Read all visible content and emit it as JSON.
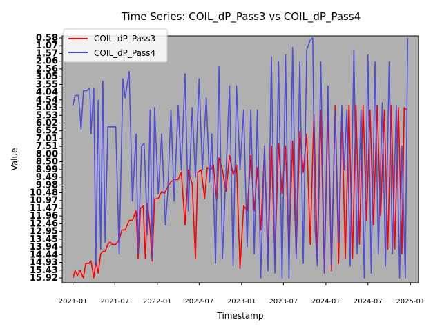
{
  "chart_data": {
    "type": "line",
    "title": "Time Series: COIL_dP_Pass3 vs COIL_dP_Pass4",
    "xlabel": "Timestamp",
    "ylabel": "Value",
    "x_ticks": [
      "2021-01",
      "2021-07",
      "2022-01",
      "2022-07",
      "2023-01",
      "2023-07",
      "2024-01",
      "2024-07",
      "2025-01"
    ],
    "xlim": [
      "2020-11-15",
      "2025-02-05"
    ],
    "y_ticks": [
      "15.92",
      "15.43",
      "14.93",
      "14.44",
      "13.94",
      "13.45",
      "12.95",
      "12.46",
      "11.96",
      "11.47",
      "10.97",
      "10.48",
      "9.98",
      "9.49",
      "8.99",
      "8.50",
      "8.00",
      "7.51",
      "7.01",
      "6.52",
      "6.02",
      "5.53",
      "5.03",
      "4.54",
      "4.04",
      "3.55",
      "3.05",
      "2.56",
      "2.06",
      "1.57",
      "1.07",
      "0.58"
    ],
    "ylim": [
      0,
      1
    ],
    "legend": {
      "placement": "upper-left"
    },
    "axes_background": "#b0b0b0",
    "grid": false,
    "series": [
      {
        "name": "COIL_dP_Pass3",
        "color": "#ff0000",
        "points": [
          [
            "2021-01-01",
            0.0
          ],
          [
            "2021-01-10",
            0.03
          ],
          [
            "2021-01-20",
            0.01
          ],
          [
            "2021-02-01",
            0.03
          ],
          [
            "2021-02-15",
            0.0
          ],
          [
            "2021-02-25",
            0.06
          ],
          [
            "2021-03-10",
            0.06
          ],
          [
            "2021-03-20",
            0.07
          ],
          [
            "2021-04-01",
            0.0
          ],
          [
            "2021-04-10",
            0.07
          ],
          [
            "2021-04-20",
            0.02
          ],
          [
            "2021-05-01",
            0.1
          ],
          [
            "2021-05-10",
            0.11
          ],
          [
            "2021-05-20",
            0.11
          ],
          [
            "2021-06-01",
            0.14
          ],
          [
            "2021-06-10",
            0.15
          ],
          [
            "2021-06-20",
            0.14
          ],
          [
            "2021-07-05",
            0.14
          ],
          [
            "2021-07-20",
            0.16
          ],
          [
            "2021-08-01",
            0.2
          ],
          [
            "2021-08-15",
            0.2
          ],
          [
            "2021-09-01",
            0.24
          ],
          [
            "2021-09-15",
            0.24
          ],
          [
            "2021-10-01",
            0.28
          ],
          [
            "2021-10-10",
            0.08
          ],
          [
            "2021-10-20",
            0.29
          ],
          [
            "2021-11-01",
            0.3
          ],
          [
            "2021-11-10",
            0.08
          ],
          [
            "2021-11-20",
            0.31
          ],
          [
            "2021-12-01",
            0.2
          ],
          [
            "2021-12-10",
            0.07
          ],
          [
            "2021-12-20",
            0.33
          ],
          [
            "2022-01-05",
            0.33
          ],
          [
            "2022-01-20",
            0.36
          ],
          [
            "2022-02-01",
            0.35
          ],
          [
            "2022-02-15",
            0.38
          ],
          [
            "2022-03-01",
            0.4
          ],
          [
            "2022-03-15",
            0.41
          ],
          [
            "2022-04-01",
            0.41
          ],
          [
            "2022-04-15",
            0.44
          ],
          [
            "2022-05-01",
            0.22
          ],
          [
            "2022-05-15",
            0.45
          ],
          [
            "2022-06-01",
            0.39
          ],
          [
            "2022-06-15",
            0.08
          ],
          [
            "2022-06-25",
            0.44
          ],
          [
            "2022-07-10",
            0.45
          ],
          [
            "2022-07-25",
            0.33
          ],
          [
            "2022-08-05",
            0.46
          ],
          [
            "2022-08-20",
            0.45
          ],
          [
            "2022-09-01",
            0.47
          ],
          [
            "2022-09-15",
            0.32
          ],
          [
            "2022-09-25",
            0.5
          ],
          [
            "2022-10-10",
            0.45
          ],
          [
            "2022-10-25",
            0.36
          ],
          [
            "2022-11-10",
            0.51
          ],
          [
            "2022-11-25",
            0.43
          ],
          [
            "2022-12-10",
            0.47
          ],
          [
            "2022-12-25",
            0.04
          ],
          [
            "2023-01-10",
            0.3
          ],
          [
            "2023-01-25",
            0.28
          ],
          [
            "2023-02-10",
            0.51
          ],
          [
            "2023-02-25",
            0.28
          ],
          [
            "2023-03-10",
            0.46
          ],
          [
            "2023-03-25",
            0.2
          ],
          [
            "2023-04-10",
            0.53
          ],
          [
            "2023-04-25",
            0.1
          ],
          [
            "2023-05-10",
            0.55
          ],
          [
            "2023-05-25",
            0.08
          ],
          [
            "2023-06-10",
            0.56
          ],
          [
            "2023-06-25",
            0.35
          ],
          [
            "2023-07-10",
            0.55
          ],
          [
            "2023-07-25",
            0.1
          ],
          [
            "2023-08-10",
            0.57
          ],
          [
            "2023-08-25",
            0.1
          ],
          [
            "2023-09-10",
            0.61
          ],
          [
            "2023-09-25",
            0.44
          ],
          [
            "2023-10-10",
            0.6
          ],
          [
            "2023-10-25",
            0.14
          ],
          [
            "2023-11-10",
            0.68
          ],
          [
            "2023-11-25",
            0.06
          ],
          [
            "2023-12-10",
            0.7
          ],
          [
            "2023-12-25",
            0.02
          ],
          [
            "2024-01-10",
            0.71
          ],
          [
            "2024-01-25",
            0.03
          ],
          [
            "2024-02-10",
            0.72
          ],
          [
            "2024-02-25",
            0.06
          ],
          [
            "2024-03-10",
            0.69
          ],
          [
            "2024-03-25",
            0.08
          ],
          [
            "2024-04-10",
            0.72
          ],
          [
            "2024-04-25",
            0.08
          ],
          [
            "2024-05-10",
            0.72
          ],
          [
            "2024-05-25",
            0.14
          ],
          [
            "2024-06-10",
            0.72
          ],
          [
            "2024-06-25",
            0.24
          ],
          [
            "2024-07-10",
            0.7
          ],
          [
            "2024-07-25",
            0.22
          ],
          [
            "2024-08-10",
            0.72
          ],
          [
            "2024-08-25",
            0.26
          ],
          [
            "2024-09-10",
            0.7
          ],
          [
            "2024-09-25",
            0.12
          ],
          [
            "2024-10-10",
            0.72
          ],
          [
            "2024-10-25",
            0.12
          ],
          [
            "2024-11-10",
            0.71
          ],
          [
            "2024-11-25",
            0.1
          ],
          [
            "2024-12-05",
            0.71
          ],
          [
            "2024-12-15",
            0.7
          ]
        ]
      },
      {
        "name": "COIL_dP_Pass4",
        "color": "#4444e0",
        "points": [
          [
            "2021-01-01",
            0.72
          ],
          [
            "2021-01-10",
            0.76
          ],
          [
            "2021-01-25",
            0.76
          ],
          [
            "2021-02-05",
            0.62
          ],
          [
            "2021-02-15",
            0.78
          ],
          [
            "2021-03-01",
            0.78
          ],
          [
            "2021-03-15",
            0.79
          ],
          [
            "2021-03-20",
            0.6
          ],
          [
            "2021-04-01",
            0.79
          ],
          [
            "2021-04-10",
            0.05
          ],
          [
            "2021-04-20",
            0.74
          ],
          [
            "2021-05-01",
            0.12
          ],
          [
            "2021-05-10",
            0.82
          ],
          [
            "2021-05-20",
            0.15
          ],
          [
            "2021-06-01",
            0.63
          ],
          [
            "2021-06-20",
            0.63
          ],
          [
            "2021-07-05",
            0.63
          ],
          [
            "2021-07-20",
            0.1
          ],
          [
            "2021-08-05",
            0.83
          ],
          [
            "2021-08-15",
            0.75
          ],
          [
            "2021-09-01",
            0.86
          ],
          [
            "2021-09-15",
            0.32
          ],
          [
            "2021-10-01",
            0.6
          ],
          [
            "2021-10-10",
            0.1
          ],
          [
            "2021-10-25",
            0.55
          ],
          [
            "2021-11-05",
            0.56
          ],
          [
            "2021-11-20",
            0.18
          ],
          [
            "2021-12-01",
            0.7
          ],
          [
            "2021-12-10",
            0.08
          ],
          [
            "2021-12-20",
            0.71
          ],
          [
            "2022-01-05",
            0.35
          ],
          [
            "2022-01-20",
            0.6
          ],
          [
            "2022-02-05",
            0.22
          ],
          [
            "2022-02-15",
            0.35
          ],
          [
            "2022-03-01",
            0.7
          ],
          [
            "2022-03-15",
            0.32
          ],
          [
            "2022-04-01",
            0.72
          ],
          [
            "2022-04-15",
            0.45
          ],
          [
            "2022-05-01",
            0.85
          ],
          [
            "2022-05-15",
            0.28
          ],
          [
            "2022-06-01",
            0.71
          ],
          [
            "2022-06-15",
            0.42
          ],
          [
            "2022-07-01",
            0.83
          ],
          [
            "2022-07-15",
            0.45
          ],
          [
            "2022-08-01",
            0.75
          ],
          [
            "2022-08-15",
            0.4
          ],
          [
            "2022-08-25",
            0.6
          ],
          [
            "2022-09-10",
            0.06
          ],
          [
            "2022-09-25",
            0.88
          ],
          [
            "2022-10-10",
            0.08
          ],
          [
            "2022-10-25",
            0.43
          ],
          [
            "2022-11-10",
            0.8
          ],
          [
            "2022-11-25",
            0.05
          ],
          [
            "2022-12-10",
            0.8
          ],
          [
            "2022-12-25",
            0.45
          ],
          [
            "2023-01-10",
            0.7
          ],
          [
            "2023-01-25",
            0.13
          ],
          [
            "2023-02-10",
            0.7
          ],
          [
            "2023-02-25",
            0.1
          ],
          [
            "2023-03-10",
            0.7
          ],
          [
            "2023-03-25",
            0.0
          ],
          [
            "2023-04-10",
            0.55
          ],
          [
            "2023-04-25",
            0.03
          ],
          [
            "2023-05-10",
            0.92
          ],
          [
            "2023-05-25",
            0.02
          ],
          [
            "2023-06-10",
            0.9
          ],
          [
            "2023-06-25",
            0.0
          ],
          [
            "2023-07-10",
            0.93
          ],
          [
            "2023-07-25",
            0.0
          ],
          [
            "2023-08-10",
            0.96
          ],
          [
            "2023-08-25",
            0.08
          ],
          [
            "2023-09-10",
            0.9
          ],
          [
            "2023-09-25",
            0.06
          ],
          [
            "2023-10-10",
            0.95
          ],
          [
            "2023-10-25",
            0.99
          ],
          [
            "2023-11-05",
            1.0
          ],
          [
            "2023-11-15",
            0.2
          ],
          [
            "2023-11-25",
            0.05
          ],
          [
            "2023-12-10",
            0.9
          ],
          [
            "2023-12-25",
            0.02
          ],
          [
            "2024-01-10",
            0.8
          ],
          [
            "2024-01-25",
            0.05
          ],
          [
            "2024-02-10",
            0.7
          ],
          [
            "2024-02-25",
            0.15
          ],
          [
            "2024-03-10",
            0.72
          ],
          [
            "2024-03-20",
            0.45
          ],
          [
            "2024-04-01",
            0.7
          ],
          [
            "2024-04-15",
            0.05
          ],
          [
            "2024-05-01",
            0.95
          ],
          [
            "2024-05-15",
            0.1
          ],
          [
            "2024-06-01",
            0.7
          ],
          [
            "2024-06-15",
            0.0
          ],
          [
            "2024-07-01",
            0.93
          ],
          [
            "2024-07-15",
            0.02
          ],
          [
            "2024-08-01",
            0.9
          ],
          [
            "2024-08-15",
            0.1
          ],
          [
            "2024-09-01",
            0.73
          ],
          [
            "2024-09-15",
            0.05
          ],
          [
            "2024-10-01",
            0.9
          ],
          [
            "2024-10-15",
            0.1
          ],
          [
            "2024-11-01",
            0.72
          ],
          [
            "2024-11-15",
            0.0
          ],
          [
            "2024-11-25",
            0.55
          ],
          [
            "2024-12-10",
            0.0
          ],
          [
            "2024-12-20",
            1.0
          ]
        ]
      }
    ]
  }
}
